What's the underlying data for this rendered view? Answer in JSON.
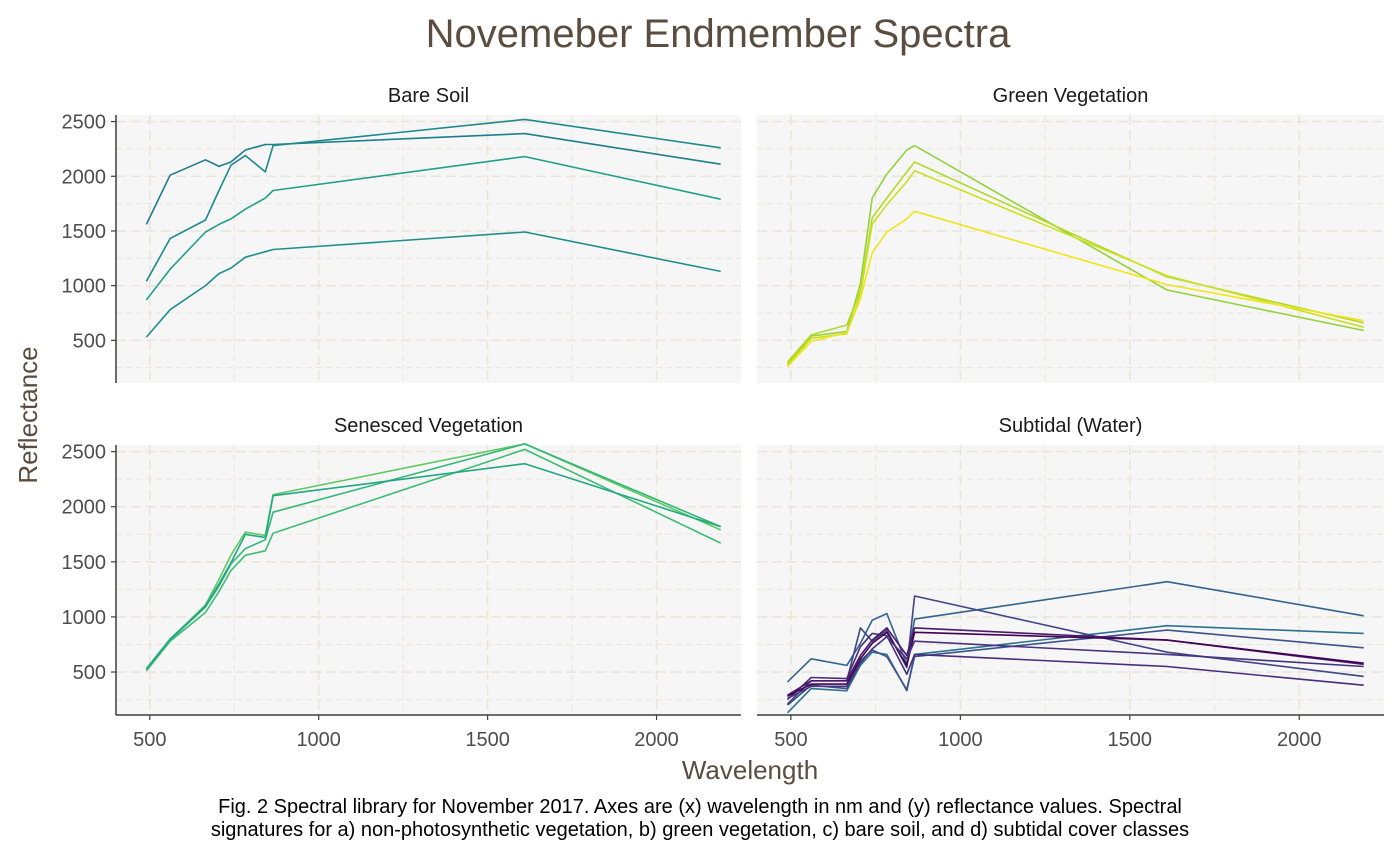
{
  "chart_data": {
    "type": "line",
    "title": "Novemeber Endmember Spectra",
    "xlabel": "Wavelength",
    "ylabel": "Reflectance",
    "xlim": [
      400,
      2250
    ],
    "ylim": [
      110,
      2560
    ],
    "x_ticks": [
      500,
      1000,
      1500,
      2000
    ],
    "y_ticks": [
      500,
      1000,
      1500,
      2000,
      2500
    ],
    "grid": true,
    "legend": "none",
    "colors": {
      "title": "#5a4d3f",
      "panel_bg": "#f6f6f6",
      "grid": "#e9e6d9",
      "axis": "#3d3d3d",
      "tick_label": "#4d4d4d"
    },
    "panels": [
      {
        "strip": "Bare Soil",
        "series": [
          {
            "color": "#1f7d8c",
            "x": [
              490,
              560,
              665,
              705,
              740,
              783,
              842,
              865,
              1610,
              2190
            ],
            "y": [
              1560,
              2010,
              2150,
              2090,
              2130,
              2240,
              2290,
              2290,
              2390,
              2110
            ]
          },
          {
            "color": "#1f8a8b",
            "x": [
              490,
              560,
              665,
              705,
              740,
              783,
              842,
              865,
              1610,
              2190
            ],
            "y": [
              1040,
              1430,
              1600,
              1870,
              2100,
              2190,
              2040,
              2280,
              2520,
              2260
            ]
          },
          {
            "color": "#21a088",
            "x": [
              490,
              560,
              665,
              705,
              740,
              783,
              842,
              865,
              1610,
              2190
            ],
            "y": [
              870,
              1150,
              1490,
              1560,
              1610,
              1700,
              1800,
              1870,
              2180,
              1790
            ]
          },
          {
            "color": "#208f8c",
            "x": [
              490,
              560,
              665,
              705,
              740,
              783,
              842,
              865,
              1610,
              2190
            ],
            "y": [
              530,
              780,
              1000,
              1110,
              1160,
              1260,
              1310,
              1330,
              1490,
              1130
            ]
          }
        ]
      },
      {
        "strip": "Green Vegetation",
        "series": [
          {
            "color": "#95d23c",
            "x": [
              490,
              560,
              665,
              705,
              740,
              783,
              842,
              865,
              1610,
              2190
            ],
            "y": [
              280,
              540,
              580,
              1020,
              1800,
              2020,
              2240,
              2280,
              960,
              590
            ]
          },
          {
            "color": "#b2d828",
            "x": [
              490,
              560,
              665,
              705,
              740,
              783,
              842,
              865,
              1610,
              2190
            ],
            "y": [
              300,
              550,
              640,
              950,
              1620,
              1800,
              2040,
              2130,
              1080,
              660
            ]
          },
          {
            "color": "#cbe11e",
            "x": [
              490,
              560,
              665,
              705,
              740,
              783,
              842,
              865,
              1610,
              2190
            ],
            "y": [
              270,
              520,
              560,
              920,
              1560,
              1740,
              1950,
              2050,
              1090,
              620
            ]
          },
          {
            "color": "#f0e51c",
            "x": [
              490,
              560,
              665,
              705,
              740,
              783,
              842,
              865,
              1610,
              2190
            ],
            "y": [
              260,
              490,
              570,
              880,
              1300,
              1490,
              1610,
              1680,
              1010,
              680
            ]
          }
        ]
      },
      {
        "strip": "Senesced Vegetation",
        "series": [
          {
            "color": "#5ec962",
            "x": [
              490,
              560,
              665,
              705,
              740,
              783,
              842,
              865,
              1610,
              2190
            ],
            "y": [
              520,
              790,
              1110,
              1340,
              1560,
              1770,
              1740,
              2110,
              2570,
              1790
            ]
          },
          {
            "color": "#3fbc73",
            "x": [
              490,
              560,
              665,
              705,
              740,
              783,
              842,
              865,
              1610,
              2190
            ],
            "y": [
              510,
              780,
              1040,
              1230,
              1420,
              1560,
              1600,
              1760,
              2520,
              1670
            ]
          },
          {
            "color": "#35b779",
            "x": [
              490,
              560,
              665,
              705,
              740,
              783,
              842,
              865,
              1610,
              2190
            ],
            "y": [
              530,
              790,
              1090,
              1280,
              1480,
              1620,
              1700,
              1950,
              2570,
              1820
            ]
          },
          {
            "color": "#22a784",
            "x": [
              490,
              560,
              665,
              705,
              740,
              783,
              842,
              865,
              1610,
              2190
            ],
            "y": [
              530,
              800,
              1100,
              1300,
              1490,
              1750,
              1720,
              2100,
              2390,
              1820
            ]
          }
        ]
      },
      {
        "strip": "Subtidal (Water)",
        "series": [
          {
            "color": "#33638d",
            "x": [
              490,
              560,
              665,
              705,
              740,
              783,
              842,
              865,
              1610,
              2190
            ],
            "y": [
              410,
              620,
              560,
              760,
              970,
              1030,
              570,
              980,
              1320,
              1010
            ]
          },
          {
            "color": "#2c728e",
            "x": [
              490,
              560,
              665,
              705,
              740,
              783,
              842,
              865,
              1610,
              2190
            ],
            "y": [
              130,
              350,
              330,
              560,
              680,
              660,
              330,
              660,
              920,
              850
            ]
          },
          {
            "color": "#3b528b",
            "x": [
              490,
              560,
              665,
              705,
              740,
              783,
              842,
              865,
              1610,
              2190
            ],
            "y": [
              200,
              380,
              350,
              600,
              700,
              640,
              340,
              640,
              880,
              720
            ]
          },
          {
            "color": "#414487",
            "x": [
              490,
              560,
              665,
              705,
              740,
              783,
              842,
              865,
              1610,
              2190
            ],
            "y": [
              210,
              420,
              420,
              900,
              780,
              880,
              540,
              1190,
              680,
              460
            ]
          },
          {
            "color": "#472d7b",
            "x": [
              490,
              560,
              665,
              705,
              740,
              783,
              842,
              865,
              1610,
              2190
            ],
            "y": [
              250,
              450,
              440,
              730,
              850,
              830,
              480,
              660,
              550,
              380
            ]
          },
          {
            "color": "#481a6c",
            "x": [
              490,
              560,
              665,
              705,
              740,
              783,
              842,
              865,
              1610,
              2190
            ],
            "y": [
              290,
              420,
              420,
              650,
              790,
              900,
              650,
              900,
              790,
              570
            ]
          },
          {
            "color": "#440154",
            "x": [
              490,
              560,
              665,
              705,
              740,
              783,
              842,
              865,
              1610,
              2190
            ],
            "y": [
              280,
              390,
              390,
              620,
              760,
              860,
              560,
              860,
              790,
              580
            ]
          },
          {
            "color": "#46337e",
            "x": [
              490,
              560,
              665,
              705,
              740,
              783,
              842,
              865,
              1610,
              2190
            ],
            "y": [
              260,
              370,
              370,
              580,
              710,
              820,
              620,
              780,
              660,
              550
            ]
          }
        ]
      }
    ]
  },
  "caption": {
    "line1": "Fig. 2 Spectral library for November 2017. Axes are (x) wavelength in nm and (y) reflectance values. Spectral",
    "line2": "signatures for a) non-photosynthetic vegetation, b) green vegetation, c) bare soil, and d) subtidal cover classes"
  }
}
